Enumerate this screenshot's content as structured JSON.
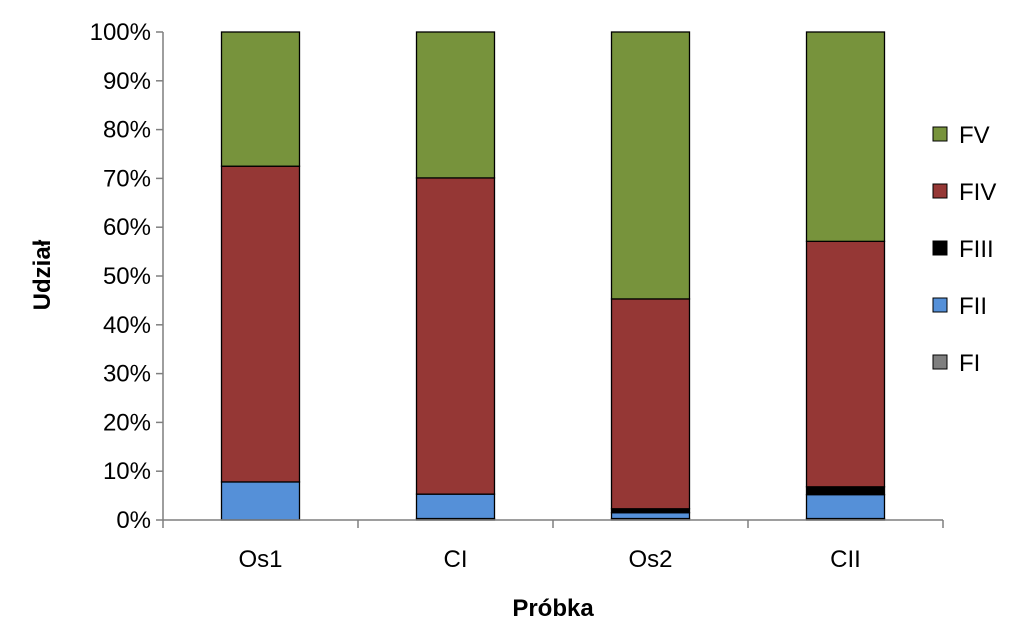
{
  "chart_data": {
    "type": "bar",
    "stacked": true,
    "categories": [
      "Os1",
      "CI",
      "Os2",
      "CII"
    ],
    "series": [
      {
        "name": "FI",
        "color": "#7f7f7f",
        "values": [
          0.0,
          0.3,
          0.3,
          0.3
        ]
      },
      {
        "name": "FII",
        "color": "#5590d8",
        "values": [
          7.8,
          5.0,
          1.2,
          4.9
        ]
      },
      {
        "name": "FIII",
        "color": "#000000",
        "values": [
          0.0,
          0.0,
          0.8,
          1.6
        ]
      },
      {
        "name": "FIV",
        "color": "#953735",
        "values": [
          64.7,
          64.8,
          43.0,
          50.3
        ]
      },
      {
        "name": "FV",
        "color": "#77933c",
        "values": [
          27.5,
          29.9,
          54.7,
          42.9
        ]
      }
    ],
    "xlabel": "Próbka",
    "ylabel": "Udział",
    "ylim": [
      0,
      100
    ],
    "yticks": [
      "0%",
      "10%",
      "20%",
      "30%",
      "40%",
      "50%",
      "60%",
      "70%",
      "80%",
      "90%",
      "100%"
    ],
    "legend_position": "right",
    "legend_order": [
      "FV",
      "FIV",
      "FIII",
      "FII",
      "FI"
    ],
    "grid": false
  }
}
